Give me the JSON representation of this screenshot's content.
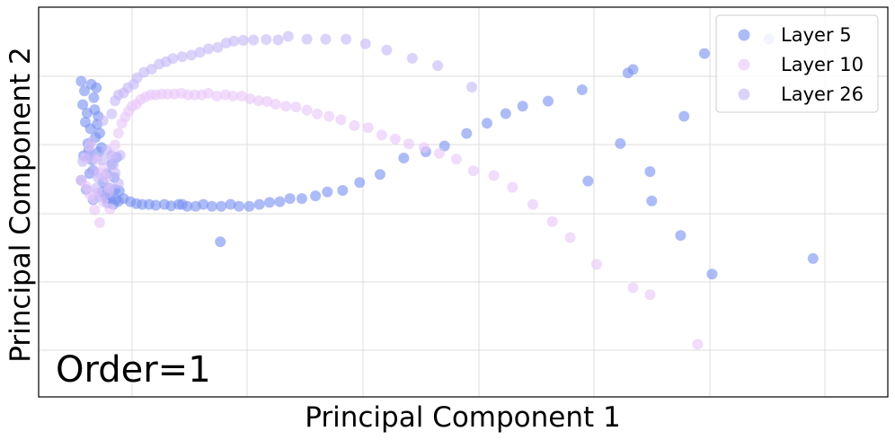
{
  "chart_data": {
    "type": "scatter",
    "title": "",
    "xlabel": "Principal Component 1",
    "ylabel": "Principal Component 2",
    "annotation": "Order=1",
    "grid": true,
    "legend_position": "top-right",
    "xlim": [
      0,
      100
    ],
    "ylim": [
      0,
      100
    ],
    "series": [
      {
        "name": "Layer 5",
        "color": "#7b93f0",
        "points": [
          [
            5.0,
            81.0
          ],
          [
            5.2,
            75.0
          ],
          [
            5.5,
            70.5
          ],
          [
            5.8,
            65.0
          ],
          [
            6.0,
            62.0
          ],
          [
            5.4,
            78.5
          ],
          [
            6.2,
            80.2
          ],
          [
            6.5,
            76.8
          ],
          [
            5.7,
            72.8
          ],
          [
            6.1,
            68.8
          ],
          [
            6.7,
            66.6
          ],
          [
            5.9,
            63.3
          ],
          [
            6.3,
            60.8
          ],
          [
            6.8,
            79.3
          ],
          [
            7.0,
            72.0
          ],
          [
            7.2,
            67.7
          ],
          [
            7.4,
            64.0
          ],
          [
            6.6,
            73.7
          ],
          [
            6.9,
            70.0
          ],
          [
            7.1,
            62.9
          ],
          [
            5.3,
            61.9
          ],
          [
            6.4,
            58.1
          ],
          [
            7.6,
            55.0
          ],
          [
            8.0,
            57.3
          ],
          [
            8.3,
            53.6
          ],
          [
            8.6,
            59.7
          ],
          [
            8.9,
            56.3
          ],
          [
            9.2,
            61.5
          ],
          [
            9.5,
            52.8
          ],
          [
            7.8,
            51.7
          ],
          [
            8.1,
            49.8
          ],
          [
            8.4,
            51.3
          ],
          [
            8.8,
            49.4
          ],
          [
            9.1,
            50.6
          ],
          [
            9.4,
            50.2
          ],
          [
            5.0,
            55.6
          ],
          [
            5.6,
            53.2
          ],
          [
            6.0,
            57.3
          ],
          [
            6.4,
            50.6
          ],
          [
            7.5,
            52.6
          ],
          [
            8.0,
            51.0
          ],
          [
            9.0,
            53.2
          ],
          [
            10.0,
            50.9
          ],
          [
            10.8,
            50.1
          ],
          [
            11.5,
            49.6
          ],
          [
            12.2,
            49.4
          ],
          [
            13.0,
            49.4
          ],
          [
            13.8,
            49.2
          ],
          [
            14.8,
            49.4
          ],
          [
            15.6,
            49.0
          ],
          [
            16.5,
            49.4
          ],
          [
            17.5,
            48.9
          ],
          [
            18.5,
            48.9
          ],
          [
            19.4,
            49.4
          ],
          [
            20.4,
            48.9
          ],
          [
            21.5,
            48.9
          ],
          [
            22.6,
            49.4
          ],
          [
            23.6,
            48.9
          ],
          [
            24.8,
            48.9
          ],
          [
            26.0,
            49.4
          ],
          [
            27.2,
            49.9
          ],
          [
            28.4,
            50.1
          ],
          [
            29.6,
            50.9
          ],
          [
            31.0,
            50.9
          ],
          [
            32.6,
            51.6
          ],
          [
            34.0,
            52.6
          ],
          [
            35.8,
            53.0
          ],
          [
            37.8,
            55.0
          ],
          [
            40.2,
            57.1
          ],
          [
            43.0,
            61.3
          ],
          [
            45.6,
            62.9
          ],
          [
            47.8,
            64.4
          ],
          [
            50.4,
            67.6
          ],
          [
            52.8,
            70.2
          ],
          [
            55.0,
            72.7
          ],
          [
            57.0,
            74.6
          ],
          [
            60.0,
            75.9
          ],
          [
            64.0,
            78.8
          ],
          [
            69.4,
            83.1
          ],
          [
            72.2,
            50.3
          ],
          [
            72.0,
            57.8
          ],
          [
            68.5,
            65.0
          ],
          [
            64.7,
            55.4
          ],
          [
            79.3,
            31.5
          ],
          [
            75.6,
            41.4
          ],
          [
            86.0,
            91.8
          ],
          [
            78.4,
            88.1
          ],
          [
            91.2,
            35.5
          ],
          [
            76.0,
            72.0
          ],
          [
            70.0,
            84.0
          ],
          [
            21.4,
            39.8
          ],
          [
            16.9,
            49.4
          ]
        ]
      },
      {
        "name": "Layer 10",
        "color": "#e8c6f8",
        "points": [
          [
            5.0,
            55.6
          ],
          [
            5.6,
            54.0
          ],
          [
            6.0,
            52.0
          ],
          [
            6.4,
            51.0
          ],
          [
            6.9,
            52.4
          ],
          [
            7.2,
            57.3
          ],
          [
            7.6,
            58.7
          ],
          [
            8.0,
            56.3
          ],
          [
            8.3,
            53.6
          ],
          [
            8.6,
            62.2
          ],
          [
            9.0,
            64.6
          ],
          [
            9.4,
            67.7
          ],
          [
            9.8,
            70.2
          ],
          [
            10.2,
            71.8
          ],
          [
            10.6,
            73.3
          ],
          [
            11.0,
            74.6
          ],
          [
            11.5,
            75.1
          ],
          [
            12.0,
            76.3
          ],
          [
            12.6,
            77.0
          ],
          [
            13.2,
            77.5
          ],
          [
            13.8,
            77.5
          ],
          [
            14.5,
            77.7
          ],
          [
            15.2,
            77.7
          ],
          [
            16.0,
            77.7
          ],
          [
            16.8,
            77.9
          ],
          [
            17.6,
            77.5
          ],
          [
            18.4,
            77.5
          ],
          [
            19.2,
            77.5
          ],
          [
            20.0,
            77.9
          ],
          [
            21.0,
            77.2
          ],
          [
            22.0,
            77.5
          ],
          [
            22.9,
            77.2
          ],
          [
            23.9,
            77.2
          ],
          [
            24.9,
            76.5
          ],
          [
            25.9,
            76.0
          ],
          [
            26.9,
            75.8
          ],
          [
            27.9,
            75.1
          ],
          [
            29.1,
            74.6
          ],
          [
            30.3,
            74.4
          ],
          [
            31.6,
            73.6
          ],
          [
            32.8,
            72.6
          ],
          [
            34.2,
            72.0
          ],
          [
            35.6,
            71.1
          ],
          [
            37.2,
            69.6
          ],
          [
            38.8,
            69.1
          ],
          [
            40.4,
            67.2
          ],
          [
            42.0,
            66.2
          ],
          [
            43.6,
            64.9
          ],
          [
            45.4,
            64.0
          ],
          [
            47.2,
            62.5
          ],
          [
            49.2,
            61.0
          ],
          [
            51.2,
            58.0
          ],
          [
            53.6,
            56.8
          ],
          [
            55.8,
            53.8
          ],
          [
            58.2,
            49.4
          ],
          [
            60.5,
            45.0
          ],
          [
            62.6,
            40.9
          ],
          [
            65.7,
            34.0
          ],
          [
            70.0,
            28.0
          ],
          [
            77.6,
            13.5
          ],
          [
            72.0,
            26.2
          ],
          [
            6.6,
            48.0
          ],
          [
            7.2,
            44.7
          ],
          [
            5.5,
            61.3
          ],
          [
            6.0,
            64.4
          ],
          [
            6.8,
            60.9
          ],
          [
            7.6,
            50.1
          ],
          [
            8.4,
            48.2
          ]
        ]
      },
      {
        "name": "Layer 26",
        "color": "#c7b8f8",
        "points": [
          [
            5.2,
            60.4
          ],
          [
            6.0,
            62.2
          ],
          [
            6.5,
            57.9
          ],
          [
            7.0,
            56.3
          ],
          [
            7.5,
            60.8
          ],
          [
            8.0,
            63.3
          ],
          [
            8.6,
            61.8
          ],
          [
            9.0,
            57.5
          ],
          [
            9.4,
            54.8
          ],
          [
            8.2,
            52.4
          ],
          [
            7.2,
            51.4
          ],
          [
            6.8,
            53.6
          ],
          [
            8.8,
            59.6
          ],
          [
            9.6,
            62.0
          ],
          [
            6.2,
            65.4
          ],
          [
            7.6,
            70.9
          ],
          [
            8.6,
            72.6
          ],
          [
            9.0,
            76.0
          ],
          [
            9.4,
            77.5
          ],
          [
            10.0,
            78.0
          ],
          [
            10.5,
            79.3
          ],
          [
            11.2,
            80.2
          ],
          [
            11.6,
            81.9
          ],
          [
            12.4,
            83.3
          ],
          [
            13.3,
            84.1
          ],
          [
            14.2,
            85.4
          ],
          [
            15.0,
            86.0
          ],
          [
            15.8,
            86.8
          ],
          [
            16.9,
            87.3
          ],
          [
            18.0,
            87.7
          ],
          [
            19.0,
            88.4
          ],
          [
            20.0,
            89.3
          ],
          [
            21.1,
            89.7
          ],
          [
            22.1,
            90.8
          ],
          [
            23.0,
            91.3
          ],
          [
            24.1,
            91.5
          ],
          [
            25.3,
            91.6
          ],
          [
            26.8,
            91.7
          ],
          [
            28.2,
            91.6
          ],
          [
            29.4,
            92.5
          ],
          [
            31.6,
            91.8
          ],
          [
            33.8,
            91.8
          ],
          [
            36.2,
            91.8
          ],
          [
            38.5,
            90.6
          ],
          [
            41.0,
            89.0
          ],
          [
            44.0,
            86.9
          ],
          [
            47.0,
            85.0
          ],
          [
            51.0,
            79.5
          ]
        ]
      }
    ]
  }
}
